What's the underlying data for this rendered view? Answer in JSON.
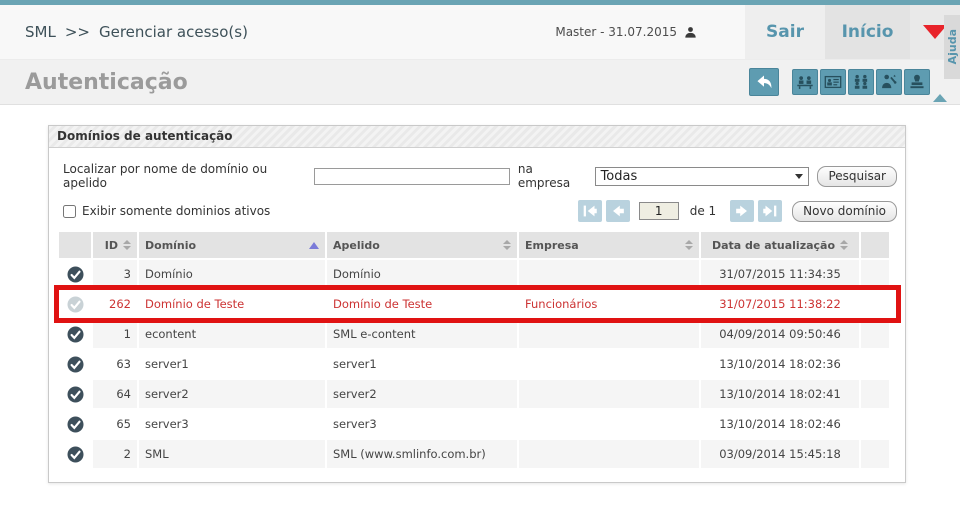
{
  "topbar": {
    "breadcrumb": {
      "root": "SML",
      "separator": ">>",
      "current": "Gerenciar acesso(s)"
    },
    "user_info": "Master - 31.07.2015",
    "logout_label": "Sair",
    "home_label": "Início",
    "help_label": "Ajuda"
  },
  "page": {
    "title": "Autenticação"
  },
  "panel": {
    "title": "Domínios de autenticação",
    "search_label": "Localizar por nome de domínio ou apelido",
    "company_label": "na empresa",
    "company_selected": "Todas",
    "search_button": "Pesquisar",
    "active_only_label": "Exibir somente dominios ativos",
    "pagination": {
      "current_page": "1",
      "of_label": "de 1"
    },
    "new_domain_button": "Novo domínio"
  },
  "table": {
    "headers": [
      "ID",
      "Domínio",
      "Apelido",
      "Empresa",
      "Data de atualização"
    ],
    "sorted_column": "Domínio",
    "sorted_direction": "asc",
    "rows": [
      {
        "id": "3",
        "domain": "Domínio",
        "alias": "Domínio",
        "company": "",
        "updated": "31/07/2015 11:34:35",
        "active": true,
        "highlighted": false
      },
      {
        "id": "262",
        "domain": "Domínio de Teste",
        "alias": "Domínio de Teste",
        "company": "Funcionários",
        "updated": "31/07/2015 11:38:22",
        "active": false,
        "highlighted": true
      },
      {
        "id": "1",
        "domain": "econtent",
        "alias": "SML e-content",
        "company": "",
        "updated": "04/09/2014 09:50:46",
        "active": true,
        "highlighted": false
      },
      {
        "id": "63",
        "domain": "server1",
        "alias": "server1",
        "company": "",
        "updated": "13/10/2014 18:02:36",
        "active": true,
        "highlighted": false
      },
      {
        "id": "64",
        "domain": "server2",
        "alias": "server2",
        "company": "",
        "updated": "13/10/2014 18:02:41",
        "active": true,
        "highlighted": false
      },
      {
        "id": "65",
        "domain": "server3",
        "alias": "server3",
        "company": "",
        "updated": "13/10/2014 18:02:46",
        "active": true,
        "highlighted": false
      },
      {
        "id": "2",
        "domain": "SML",
        "alias": "SML (www.smlinfo.com.br)",
        "company": "",
        "updated": "03/09/2014 15:45:18",
        "active": true,
        "highlighted": false
      }
    ]
  },
  "icons": {
    "user": "person-silhouette",
    "menu_dropdown": "red-triangle-down",
    "undo": "curved-arrow-left",
    "toolbar": [
      "people-meeting",
      "id-card",
      "org-group",
      "user-settings",
      "stamp"
    ],
    "collapse": "up-triangle",
    "pagination": [
      "first-page",
      "prev-page",
      "next-page",
      "last-page"
    ],
    "row_active": "check-circle",
    "sort": "up-down-arrows"
  },
  "colors": {
    "accent_teal": "#6aa4b4",
    "button_teal": "#5e9cb1",
    "link_blue": "#5795ad",
    "menu_red": "#e8232a",
    "highlight_red": "#e01212",
    "highlight_text_red": "#cc3333",
    "active_check": "#3d4f5b",
    "inactive_check": "#c9d2d6",
    "pagination_blue": "#b9d2de",
    "sorted_arrow_blue": "#7a7ad8"
  }
}
